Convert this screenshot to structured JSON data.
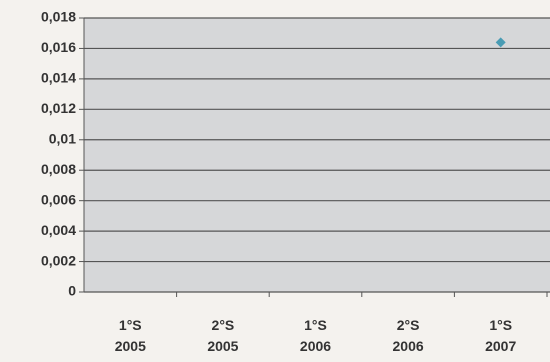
{
  "chart_data": {
    "type": "line",
    "categories": [
      "1°S 2005",
      "2°S 2005",
      "1°S 2006",
      "2°S 2006",
      "1°S 2007"
    ],
    "series": [
      {
        "color": "#4a9cb4",
        "values": [
          null,
          null,
          null,
          null,
          0.0164
        ]
      }
    ],
    "ylim": [
      0,
      0.018
    ],
    "yticks": [
      0,
      {
        "value": 0.002,
        "label": "0,002"
      },
      {
        "value": 0.004,
        "label": "0,004"
      },
      {
        "value": 0.006,
        "label": "0,006"
      },
      {
        "value": 0.008,
        "label": "0,008"
      },
      {
        "value": 0.01,
        "label": "0,01"
      },
      {
        "value": 0.012,
        "label": "0,012"
      },
      {
        "value": 0.014,
        "label": "0,014"
      },
      {
        "value": 0.016,
        "label": "0,016"
      },
      {
        "value": 0.018,
        "label": "0,018"
      }
    ],
    "grid": true,
    "marker": "diamond"
  }
}
